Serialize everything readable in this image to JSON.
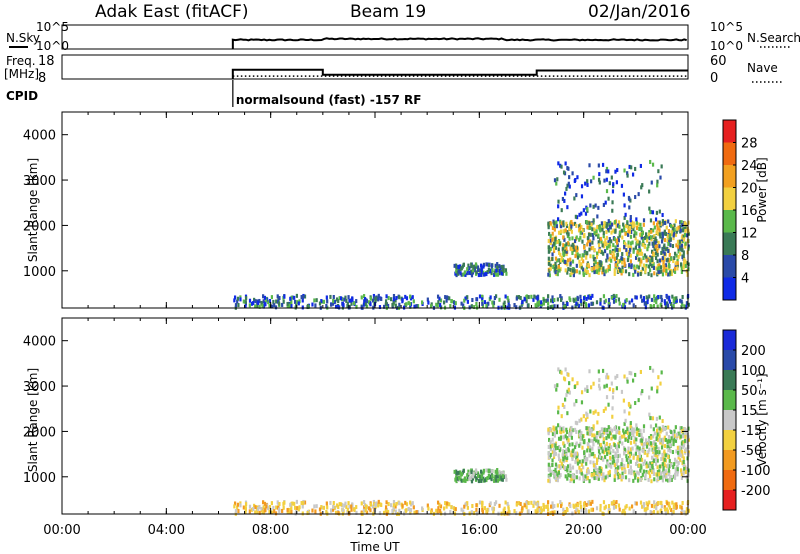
{
  "header": {
    "station": "Adak East (fitACF)",
    "beam": "Beam 19",
    "date": "02/Jan/2016"
  },
  "summary_panels": {
    "nsky_label": "N.Sky",
    "nsearch_label": "N.Search",
    "freq_label_line1": "Freq.",
    "freq_label_line2": "[MHz]",
    "nave_label": "Nave",
    "cpid_label": "CPID",
    "nsky_ticks": [
      "10^5",
      "10^0"
    ],
    "nsearch_ticks": [
      "10^5",
      "10^0"
    ],
    "freq_ticks": [
      "18",
      "8"
    ],
    "nave_ticks": [
      "60",
      "0"
    ],
    "cpid_text": "normalsound (fast) -157 RF"
  },
  "x_axis": {
    "label": "Time UT",
    "ticks": [
      "00:00",
      "04:00",
      "08:00",
      "12:00",
      "16:00",
      "20:00",
      "00:00"
    ]
  },
  "power_panel": {
    "ylabel": "Slant Range [km]",
    "yticks": [
      "1000",
      "2000",
      "3000",
      "4000"
    ],
    "colorbar_label": "Power [dB]",
    "colorbar_ticks": [
      "4",
      "8",
      "12",
      "16",
      "20",
      "24",
      "28"
    ]
  },
  "velocity_panel": {
    "ylabel": "Slant Range [km]",
    "yticks": [
      "1000",
      "2000",
      "3000",
      "4000"
    ],
    "colorbar_label": "Velocity [m s⁻¹]",
    "colorbar_ticks": [
      "200",
      "100",
      "50",
      "15",
      "-15",
      "-50",
      "-100",
      "-200"
    ]
  },
  "chart_data": {
    "type": "heatmap",
    "time_range_hours": [
      0,
      24
    ],
    "range_km": [
      180,
      4500
    ],
    "data_start_hour": 6.55,
    "freq_mhz_segments": [
      {
        "start": 6.55,
        "end": 10.0,
        "value": 13.5
      },
      {
        "start": 10.0,
        "end": 18.2,
        "value": 10.5
      },
      {
        "start": 18.2,
        "end": 24.0,
        "value": 13.0
      }
    ],
    "nave_level": 10,
    "power_scale": {
      "min": 0,
      "max": 32,
      "unit": "dB"
    },
    "velocity_scale": {
      "min": -250,
      "max": 250,
      "unit": "m/s"
    },
    "power_colors": [
      "#0f2ae6",
      "#2a4aa8",
      "#3a7a56",
      "#5ab84a",
      "#f2d040",
      "#f2a020",
      "#f06a10",
      "#e62020"
    ],
    "velocity_colors": [
      "#e62020",
      "#f06a10",
      "#f29a20",
      "#f2d040",
      "#c8c8c8",
      "#5ab84a",
      "#3a7a56",
      "#2a4aa8",
      "#1a2ad8"
    ],
    "scatter_regions": [
      {
        "name": "late-day main echo",
        "t": [
          18.6,
          24.0
        ],
        "range_km": [
          900,
          2100
        ],
        "power_db": 14,
        "velocity_ms": 5
      },
      {
        "name": "late-day upper patch",
        "t": [
          18.8,
          23.0
        ],
        "range_km": [
          2100,
          3400
        ],
        "power_db": 6,
        "velocity_ms": 0
      },
      {
        "name": "mid-day patch",
        "t": [
          15.0,
          17.0
        ],
        "range_km": [
          900,
          1150
        ],
        "power_db": 7,
        "velocity_ms": 40
      },
      {
        "name": "near-range ground scatter",
        "t": [
          6.5,
          24.0
        ],
        "range_km": [
          180,
          450
        ],
        "power_db": 8,
        "velocity_ms": -30
      }
    ]
  }
}
